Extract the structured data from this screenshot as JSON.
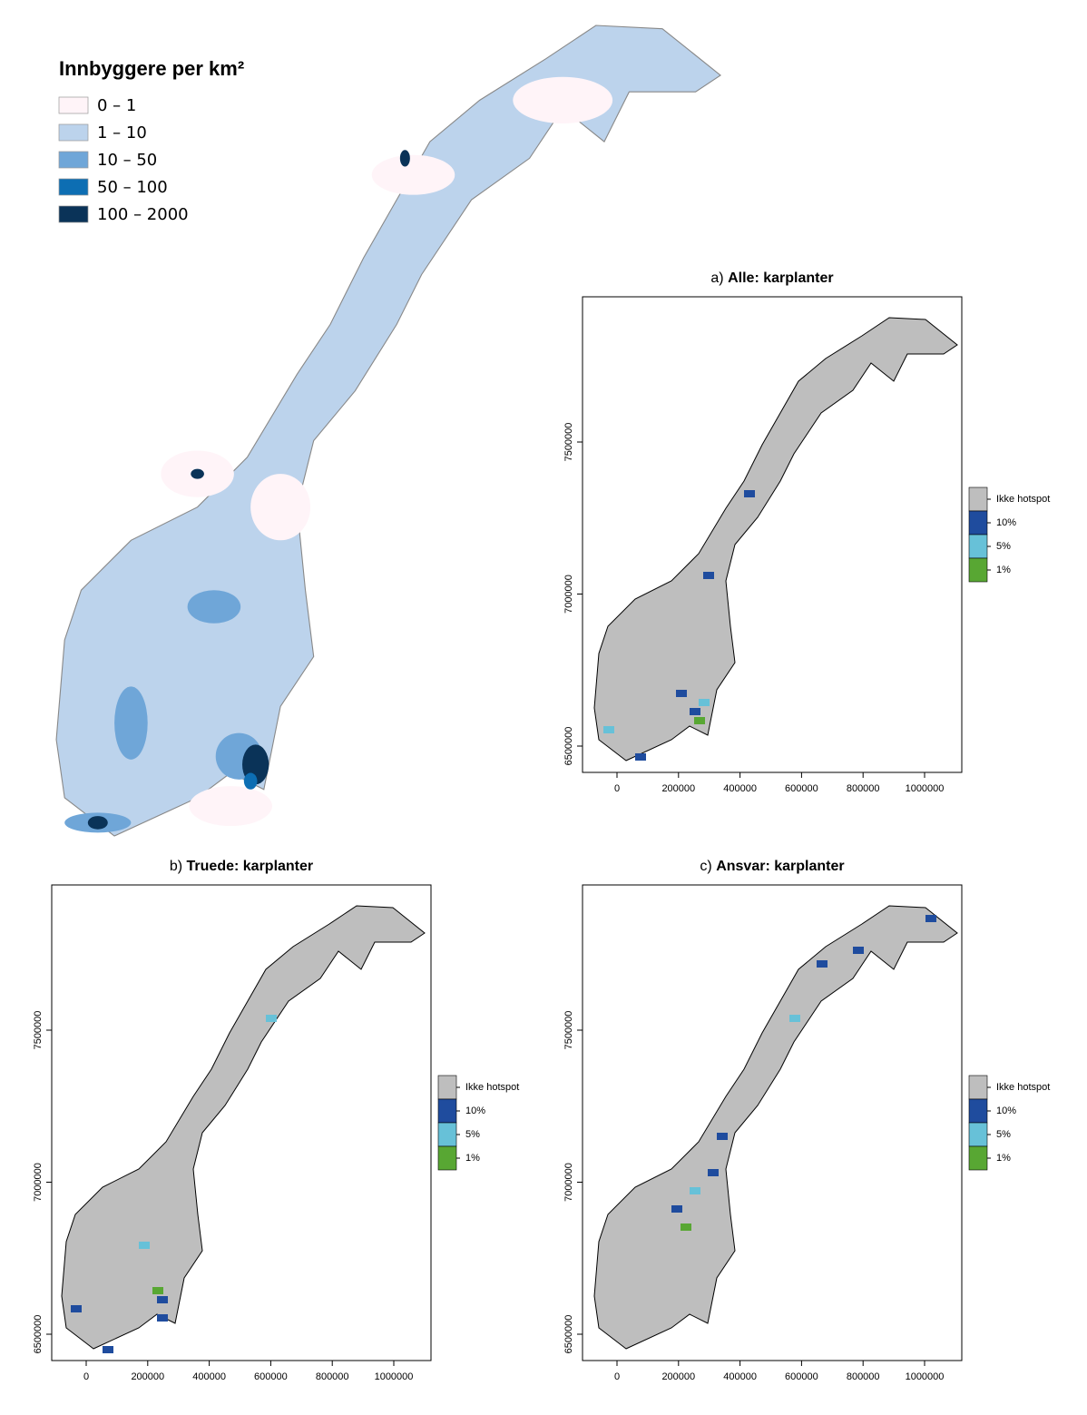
{
  "population_map": {
    "title": "Innbyggere per km²",
    "legend": [
      {
        "label": "0 – 1",
        "color": "#fff4f8"
      },
      {
        "label": "1 – 10",
        "color": "#bcd3ec"
      },
      {
        "label": "10 – 50",
        "color": "#6fa6d8"
      },
      {
        "label": "50 – 100",
        "color": "#0d6eb3"
      },
      {
        "label": "100 – 2000",
        "color": "#0a3358"
      }
    ]
  },
  "panels": [
    {
      "label": "a)",
      "title": "Alle: karplanter",
      "xticks": [
        0,
        200000,
        400000,
        600000,
        800000,
        1000000
      ],
      "yticks": [
        6500000,
        7000000,
        7500000
      ],
      "legend": [
        {
          "label": "Ikke hotspot",
          "color": "#bebebe"
        },
        {
          "label": "10%",
          "color": "#1f4c9e"
        },
        {
          "label": "5%",
          "color": "#67c1d8"
        },
        {
          "label": "1%",
          "color": "#58a733"
        }
      ]
    },
    {
      "label": "b)",
      "title": "Truede: karplanter",
      "xticks": [
        0,
        200000,
        400000,
        600000,
        800000,
        1000000
      ],
      "yticks": [
        6500000,
        7000000,
        7500000
      ],
      "legend": [
        {
          "label": "Ikke hotspot",
          "color": "#bebebe"
        },
        {
          "label": "10%",
          "color": "#1f4c9e"
        },
        {
          "label": "5%",
          "color": "#67c1d8"
        },
        {
          "label": "1%",
          "color": "#58a733"
        }
      ]
    },
    {
      "label": "c)",
      "title": "Ansvar: karplanter",
      "xticks": [
        0,
        200000,
        400000,
        600000,
        800000,
        1000000
      ],
      "yticks": [
        6500000,
        7000000,
        7500000
      ],
      "legend": [
        {
          "label": "Ikke hotspot",
          "color": "#bebebe"
        },
        {
          "label": "10%",
          "color": "#1f4c9e"
        },
        {
          "label": "5%",
          "color": "#67c1d8"
        },
        {
          "label": "1%",
          "color": "#58a733"
        }
      ]
    }
  ]
}
